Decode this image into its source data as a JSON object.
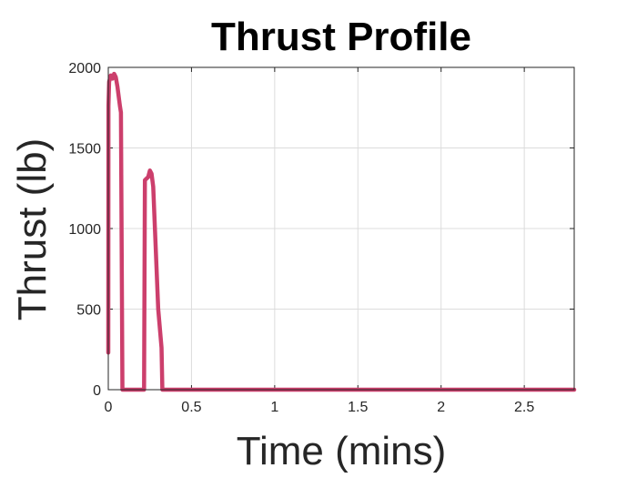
{
  "chart_data": {
    "type": "line",
    "title": "Thrust Profile",
    "xlabel": "Time (mins)",
    "ylabel": "Thrust (lb)",
    "xlim": [
      0,
      2.8
    ],
    "ylim": [
      0,
      2000
    ],
    "x_ticks": [
      0,
      0.5,
      1,
      1.5,
      2,
      2.5
    ],
    "x_tick_labels": [
      "0",
      "0.5",
      "1",
      "1.5",
      "2",
      "2.5"
    ],
    "y_ticks": [
      0,
      500,
      1000,
      1500,
      2000
    ],
    "y_tick_labels": [
      "0",
      "500",
      "1000",
      "1500",
      "2000"
    ],
    "grid": true,
    "series": [
      {
        "color": "#cc3f6c",
        "x": [
          0.0,
          0.001,
          0.005,
          0.015,
          0.025,
          0.035,
          0.045,
          0.055,
          0.07,
          0.076,
          0.085,
          0.09,
          0.2,
          0.215,
          0.22,
          0.23,
          0.24,
          0.25,
          0.26,
          0.27,
          0.3,
          0.32,
          0.325,
          2.8
        ],
        "y": [
          230,
          1760,
          1910,
          1950,
          1930,
          1960,
          1940,
          1880,
          1760,
          1720,
          0,
          0,
          0,
          0,
          1300,
          1310,
          1320,
          1360,
          1340,
          1260,
          500,
          260,
          0,
          0
        ]
      }
    ]
  }
}
